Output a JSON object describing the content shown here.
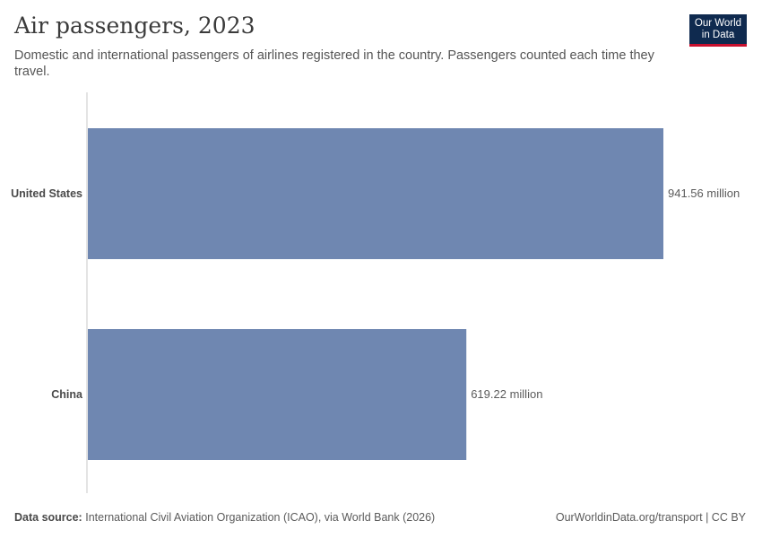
{
  "header": {
    "title": "Air passengers, 2023",
    "subtitle": "Domestic and international passengers of airlines registered in the country. Passengers counted each time they travel."
  },
  "logo": {
    "line1": "Our World",
    "line2": "in Data"
  },
  "footer": {
    "source_label": "Data source:",
    "source_text": "International Civil Aviation Organization (ICAO), via World Bank (2026)",
    "url_text": "OurWorldinData.org/transport",
    "license": "CC BY"
  },
  "colors": {
    "bar": "#6f87b1",
    "axis": "#c8c8c8"
  },
  "chart_data": {
    "type": "bar",
    "orientation": "horizontal",
    "categories": [
      "United States",
      "China"
    ],
    "values": [
      941.56,
      619.22
    ],
    "value_labels": [
      "941.56 million",
      "619.22 million"
    ],
    "unit": "million",
    "xlim": [
      0,
      941.56
    ],
    "grid": false
  }
}
